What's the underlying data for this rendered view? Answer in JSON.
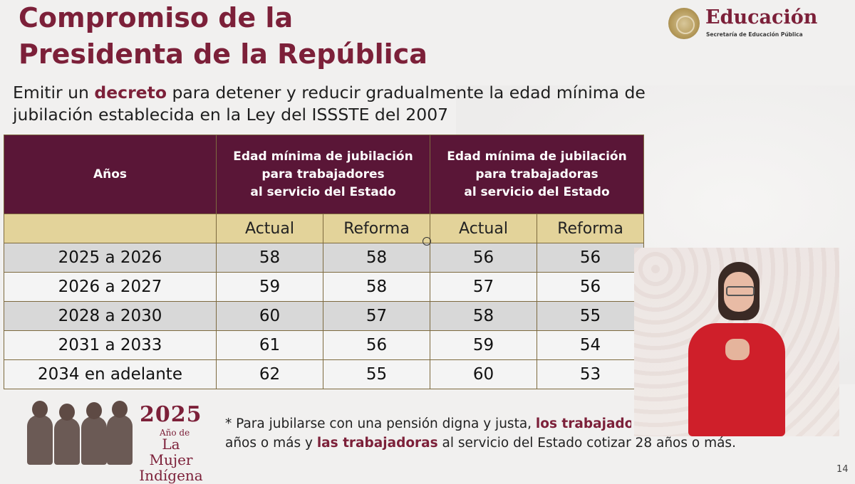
{
  "title": [
    "Compromiso de la",
    "Presidenta de la República"
  ],
  "logo": {
    "name": "Educación",
    "subtitle": "Secretaría de Educación Pública"
  },
  "subtitle": {
    "pre": "Emitir un ",
    "bold": "decreto",
    "post": " para detener y reducir gradualmente la edad mínima de jubilación establecida en la Ley del ISSSTE del 2007"
  },
  "table": {
    "header_years": "Años",
    "header_men": [
      "Edad mínima de jubilación",
      "para trabajadores",
      "al servicio del Estado"
    ],
    "header_women": [
      "Edad mínima de jubilación",
      "para trabajadoras",
      "al servicio del Estado"
    ],
    "sub": [
      "Actual",
      "Reforma",
      "Actual",
      "Reforma"
    ],
    "rows": [
      {
        "years": "2025 a 2026",
        "m_actual": "58",
        "m_reforma": "58",
        "w_actual": "56",
        "w_reforma": "56"
      },
      {
        "years": "2026 a 2027",
        "m_actual": "59",
        "m_reforma": "58",
        "w_actual": "57",
        "w_reforma": "56"
      },
      {
        "years": "2028 a 2030",
        "m_actual": "60",
        "m_reforma": "57",
        "w_actual": "58",
        "w_reforma": "55"
      },
      {
        "years": "2031 a 2033",
        "m_actual": "61",
        "m_reforma": "56",
        "w_actual": "59",
        "w_reforma": "54"
      },
      {
        "years": "2034 en adelante",
        "m_actual": "62",
        "m_reforma": "55",
        "w_actual": "60",
        "w_reforma": "53"
      }
    ]
  },
  "footer_logo": {
    "year": "2025",
    "line1": "Año de",
    "line2": "La Mujer",
    "line3": "Indígena"
  },
  "note": {
    "l1_pre": "* Para jubilarse con una pensión digna y justa, ",
    "l1_bold": "los trabajadores",
    "l2_pre": "años o más y ",
    "l2_bold": "las trabajadoras",
    "l2_post": " al servicio del Estado cotizar 28 años o más."
  },
  "page_number": "14",
  "colors": {
    "brand": "#7c2039",
    "header_bg": "#5a1637",
    "subheader_bg": "#e3d39a"
  }
}
